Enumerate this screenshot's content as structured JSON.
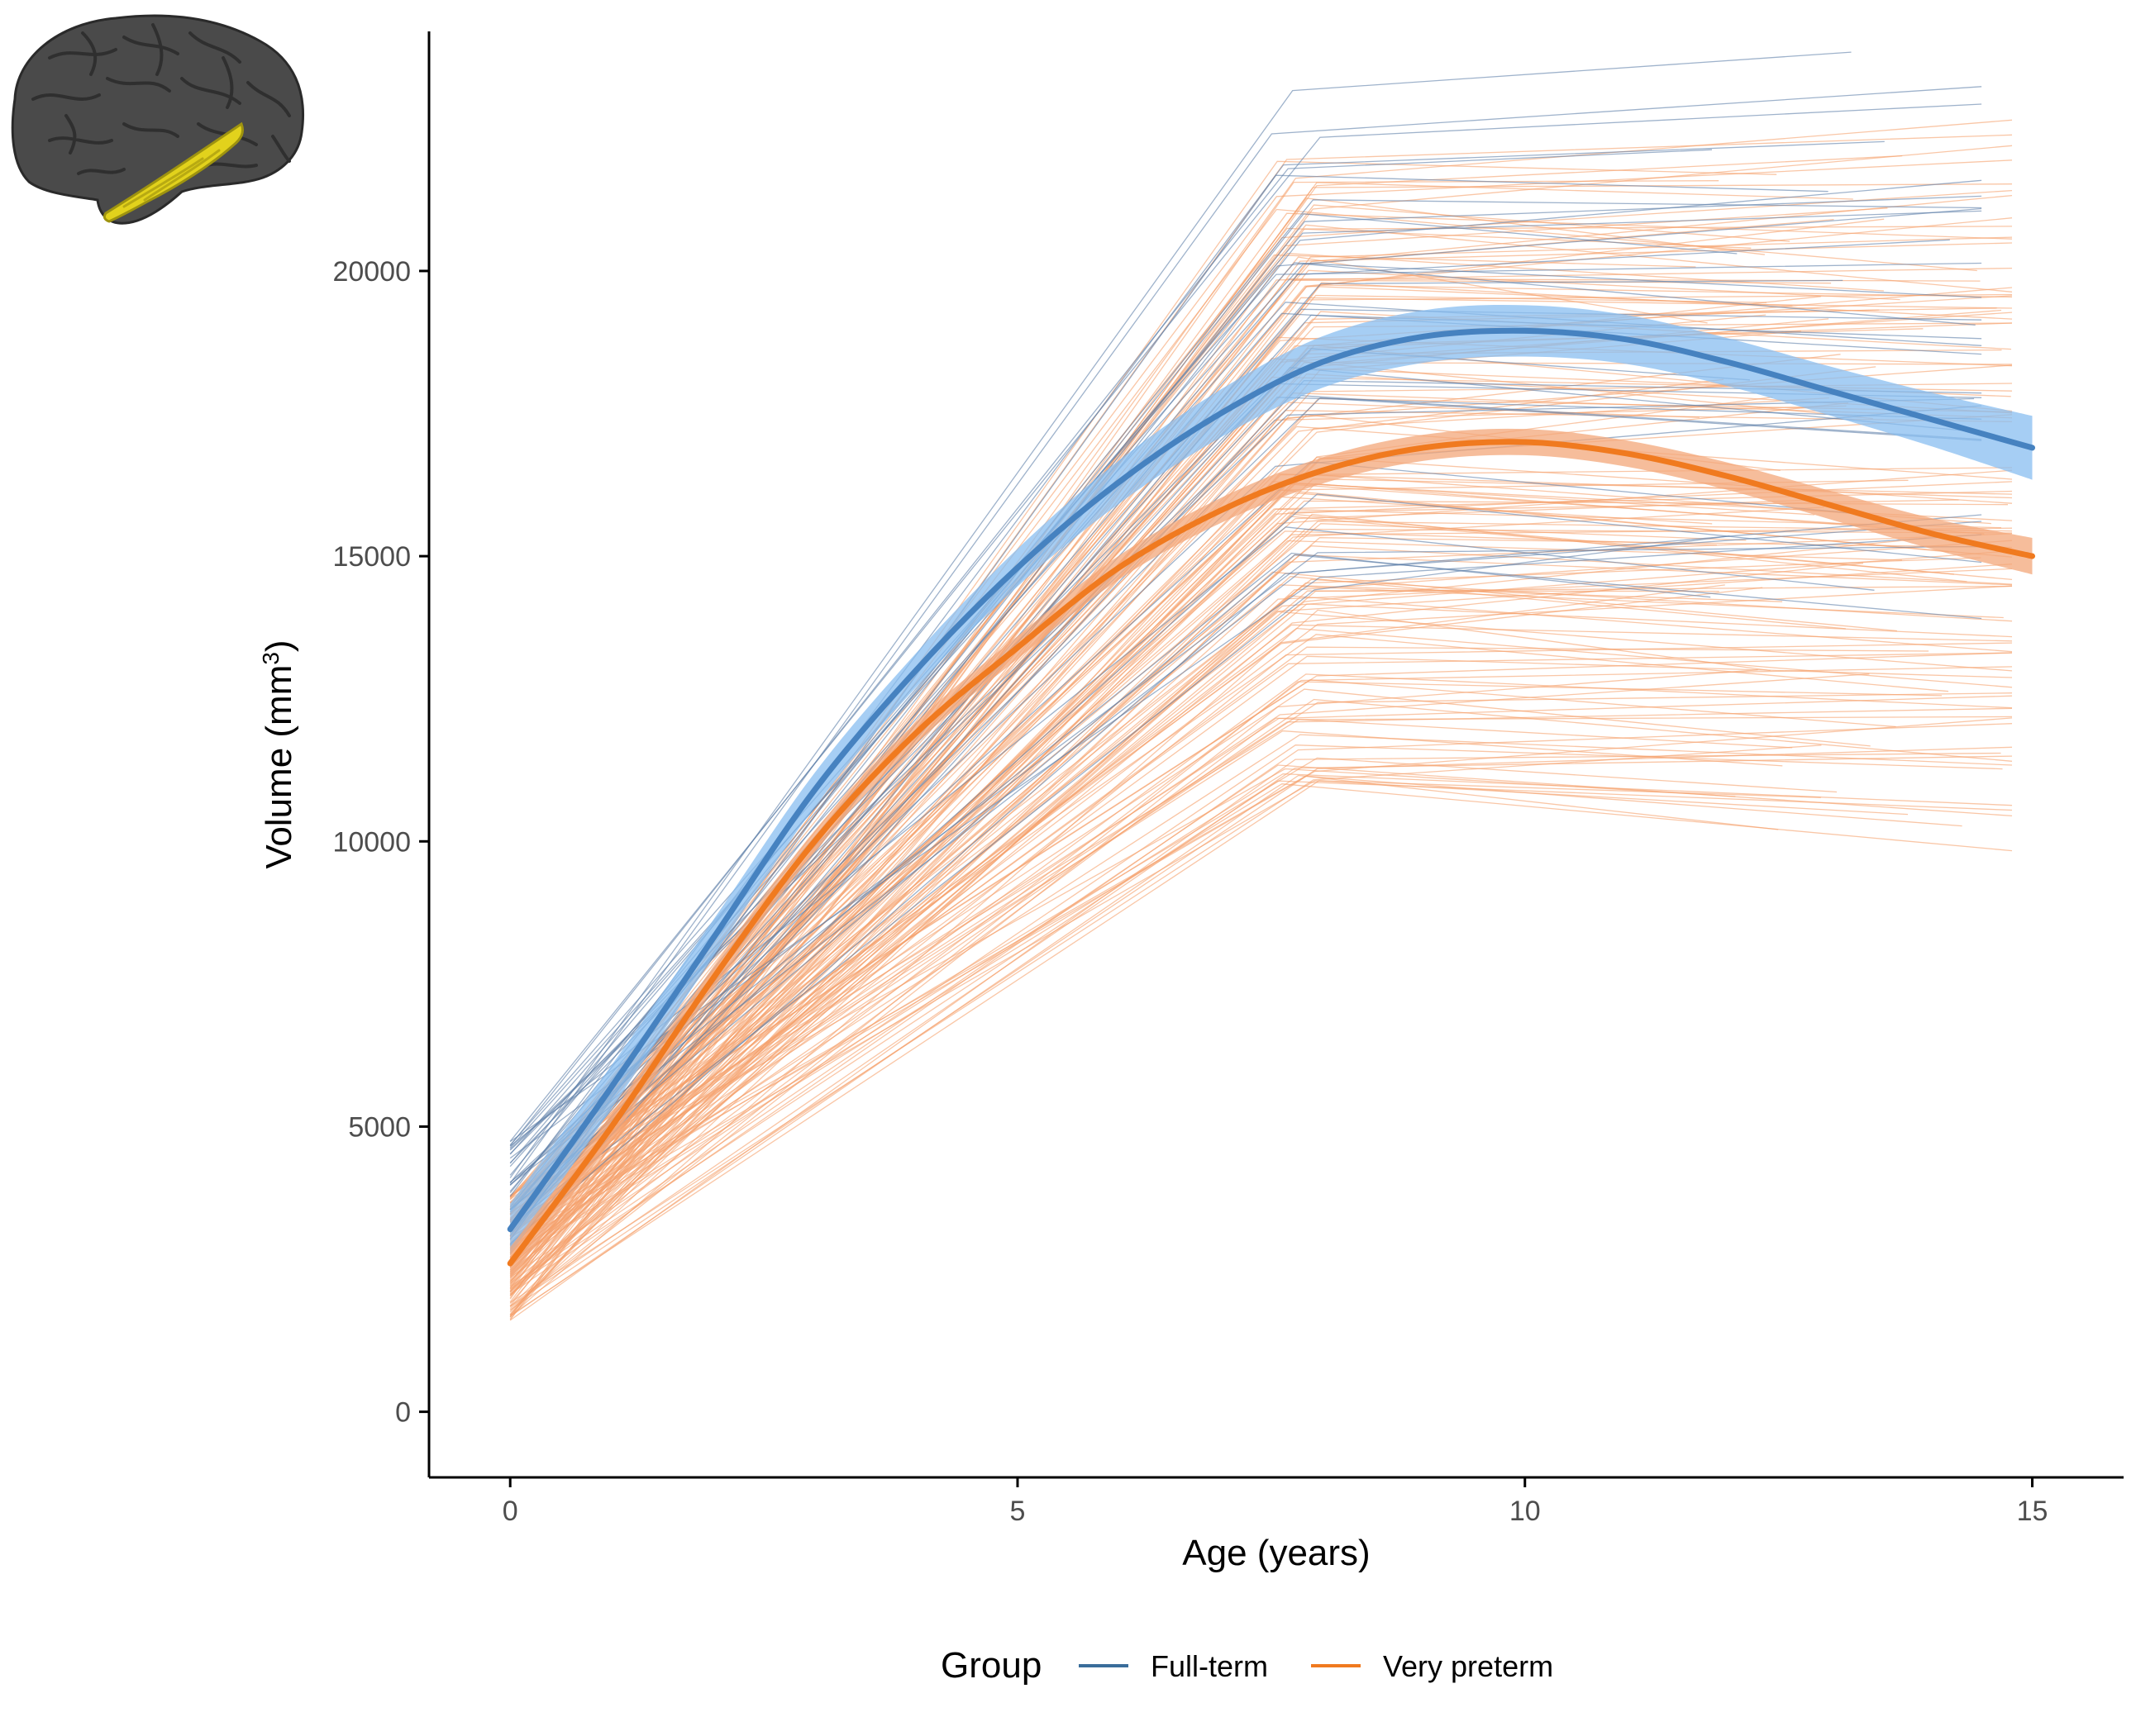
{
  "chart_data": {
    "type": "line",
    "title": "",
    "xlabel": "Age (years)",
    "ylabel": "Volume (mm",
    "ylabel_superscript": "3",
    "ylabel_close": ")",
    "xlim": [
      -0.8,
      15.9
    ],
    "ylim": [
      -1150,
      24200
    ],
    "x_ticks": [
      0,
      5,
      10,
      15
    ],
    "x_tick_labels": [
      "0",
      "5",
      "10",
      "15"
    ],
    "y_ticks": [
      0,
      5000,
      10000,
      15000,
      20000
    ],
    "y_tick_labels": [
      "0",
      "5000",
      "10000",
      "15000",
      "20000"
    ],
    "grid": false,
    "legend": {
      "title": "Group",
      "position": "bottom",
      "entries": [
        {
          "label": "Full-term",
          "color": "#3a6d9a"
        },
        {
          "label": "Very preterm",
          "color": "#f07a1f"
        }
      ]
    },
    "series": [
      {
        "name": "Full-term",
        "color": "#4682c0",
        "band_color": "#88bdf0",
        "x": [
          0,
          1,
          2,
          3,
          4,
          5,
          6,
          7,
          8,
          9,
          10,
          11,
          12,
          13,
          14,
          15
        ],
        "y": [
          3200,
          5700,
          8300,
          10900,
          13000,
          14800,
          16300,
          17500,
          18400,
          18850,
          18950,
          18800,
          18400,
          17900,
          17400,
          16900
        ],
        "band_half_width": [
          450,
          380,
          320,
          300,
          300,
          330,
          380,
          420,
          450,
          460,
          450,
          430,
          420,
          430,
          470,
          560
        ]
      },
      {
        "name": "Very preterm",
        "color": "#f07a1f",
        "band_color": "#f3a779",
        "x": [
          0,
          1,
          2,
          3,
          4,
          5,
          6,
          7,
          8,
          9,
          10,
          11,
          12,
          13,
          14,
          15
        ],
        "y": [
          2600,
          5000,
          7600,
          10000,
          11900,
          13400,
          14800,
          15800,
          16500,
          16900,
          17000,
          16800,
          16400,
          15900,
          15400,
          15000
        ],
        "band_half_width": [
          280,
          230,
          200,
          190,
          190,
          200,
          210,
          220,
          230,
          230,
          230,
          230,
          240,
          250,
          270,
          320
        ]
      }
    ],
    "individual_trajectories": {
      "Full-term": {
        "count": 40,
        "color": "#5d7fa8",
        "baseline_age": 0,
        "baseline_volume_range": [
          2800,
          4800
        ],
        "followup_age_range": [
          7.5,
          14.5
        ],
        "followup_volume_range": [
          14000,
          23200
        ]
      },
      "Very preterm": {
        "count": 170,
        "color": "#f5a06a",
        "baseline_age": 0,
        "baseline_volume_range": [
          1600,
          3800
        ],
        "followup_age_range": [
          7.5,
          14.8
        ],
        "followup_volume_range": [
          11000,
          22000
        ]
      }
    }
  },
  "inset": {
    "icon": "brain-lateral-icon",
    "highlight_region": "superior temporal gyrus",
    "brain_color": "#4a4a4a",
    "highlight_color": "#e2d21c"
  }
}
